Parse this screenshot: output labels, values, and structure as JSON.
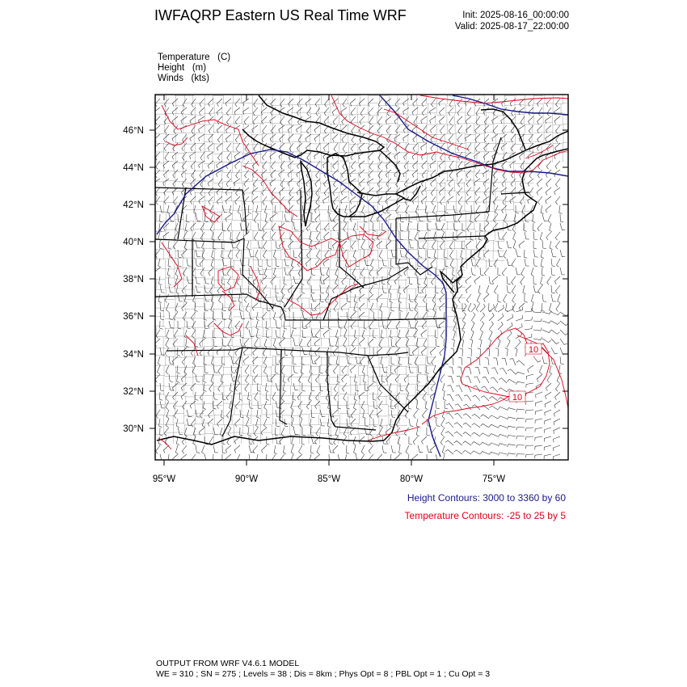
{
  "title": "IWFAQRP Eastern US Real Time WRF",
  "init": "Init: 2025-08-16_00:00:00",
  "valid": "Valid: 2025-08-17_22:00:00",
  "fields": [
    {
      "name": "Temperature",
      "unit": "(C)"
    },
    {
      "name": "Height",
      "unit": "(m)"
    },
    {
      "name": "Winds",
      "unit": "(kts)"
    }
  ],
  "lat_labels": [
    "46°N",
    "44°N",
    "42°N",
    "40°N",
    "38°N",
    "36°N",
    "34°N",
    "32°N",
    "30°N"
  ],
  "lon_labels": [
    "95°W",
    "90°W",
    "85°W",
    "80°W",
    "75°W"
  ],
  "contour_labels": [
    "10",
    "10"
  ],
  "legend": {
    "height": "Height Contours: 3000 to 3360 by 60",
    "temperature": "Temperature Contours: -25 to 25 by 5"
  },
  "colors": {
    "height": "#1a1a8c",
    "temperature": "#e0001a",
    "map": "#000000"
  },
  "footer": {
    "line1": "OUTPUT FROM WRF V4.6.1 MODEL",
    "line2": "WE = 310 ; SN = 275 ; Levels = 38 ; Dis = 8km ; Phys Opt = 8 ; PBL Opt = 1 ; Cu Opt = 3"
  }
}
